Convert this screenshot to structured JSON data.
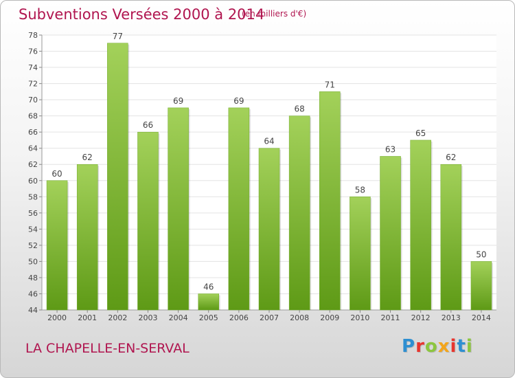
{
  "header": {
    "title": "Subventions Versées 2000 à 2014",
    "unit": "(en milliers d'€)"
  },
  "footer": {
    "commune": "LA CHAPELLE-EN-SERVAL",
    "logo": {
      "letters": [
        "P",
        "r",
        "o",
        "x",
        "i",
        "t",
        "i"
      ],
      "colors": [
        "#2e8fd1",
        "#e8352e",
        "#8cc63f",
        "#f3a51c",
        "#e8352e",
        "#2e8fd1",
        "#8cc63f"
      ]
    }
  },
  "chart_data": {
    "type": "bar",
    "title": "Subventions Versées 2000 à 2014",
    "subtitle": "(en milliers d'€)",
    "categories": [
      "2000",
      "2001",
      "2002",
      "2003",
      "2004",
      "2005",
      "2006",
      "2007",
      "2008",
      "2009",
      "2010",
      "2011",
      "2012",
      "2013",
      "2014"
    ],
    "values": [
      60,
      62,
      77,
      66,
      69,
      46,
      69,
      64,
      68,
      71,
      58,
      63,
      65,
      62,
      50
    ],
    "ylim": [
      44,
      78
    ],
    "yticks": [
      44,
      46,
      48,
      50,
      52,
      54,
      56,
      58,
      60,
      62,
      64,
      66,
      68,
      70,
      72,
      74,
      76,
      78
    ],
    "grid": true,
    "legend": "none",
    "colors": {
      "bar_top": "#a3d15a",
      "bar_bottom": "#5e9a16",
      "text": "#b0154f"
    }
  }
}
